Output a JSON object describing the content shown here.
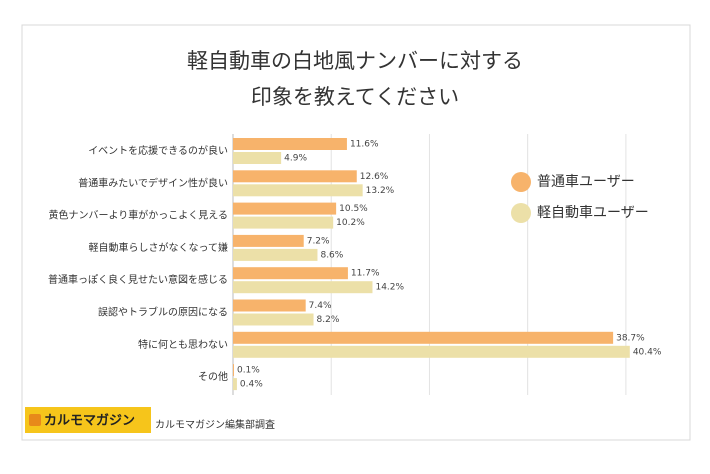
{
  "chart_data": {
    "type": "hbar",
    "title_lines": [
      "軽自動車の白地風ナンバーに対する",
      "印象を教えてください"
    ],
    "categories": [
      "イベントを応援できるのが良い",
      "普通車みたいでデザイン性が良い",
      "黄色ナンバーより車がかっこよく見える",
      "軽自動車らしさがなくなって嫌",
      "普通車っぽく良く見せたい意図を感じる",
      "誤認やトラブルの原因になる",
      "特に何とも思わない",
      "その他"
    ],
    "series": [
      {
        "name": "普通車ユーザー",
        "color": "#f7b36b",
        "values": [
          11.6,
          12.6,
          10.5,
          7.2,
          11.7,
          7.4,
          38.7,
          0.1
        ],
        "value_labels": [
          "11.6%",
          "12.6%",
          "10.5%",
          "7.2%",
          "11.7%",
          "7.4%",
          "38.7%",
          "0.1%"
        ]
      },
      {
        "name": "軽自動車ユーザー",
        "color": "#ece0a8",
        "values": [
          4.9,
          13.2,
          10.2,
          8.6,
          14.2,
          8.2,
          40.4,
          0.4
        ],
        "value_labels": [
          "4.9%",
          "13.2%",
          "10.2%",
          "8.6%",
          "14.2%",
          "8.2%",
          "40.4%",
          "0.4%"
        ]
      }
    ],
    "xlim": [
      0,
      45
    ],
    "xticks": [
      10,
      20,
      30,
      40
    ],
    "grid": true,
    "legend": "right",
    "brand": "カルモマガジン",
    "source": "カルモマガジン編集部調査"
  }
}
